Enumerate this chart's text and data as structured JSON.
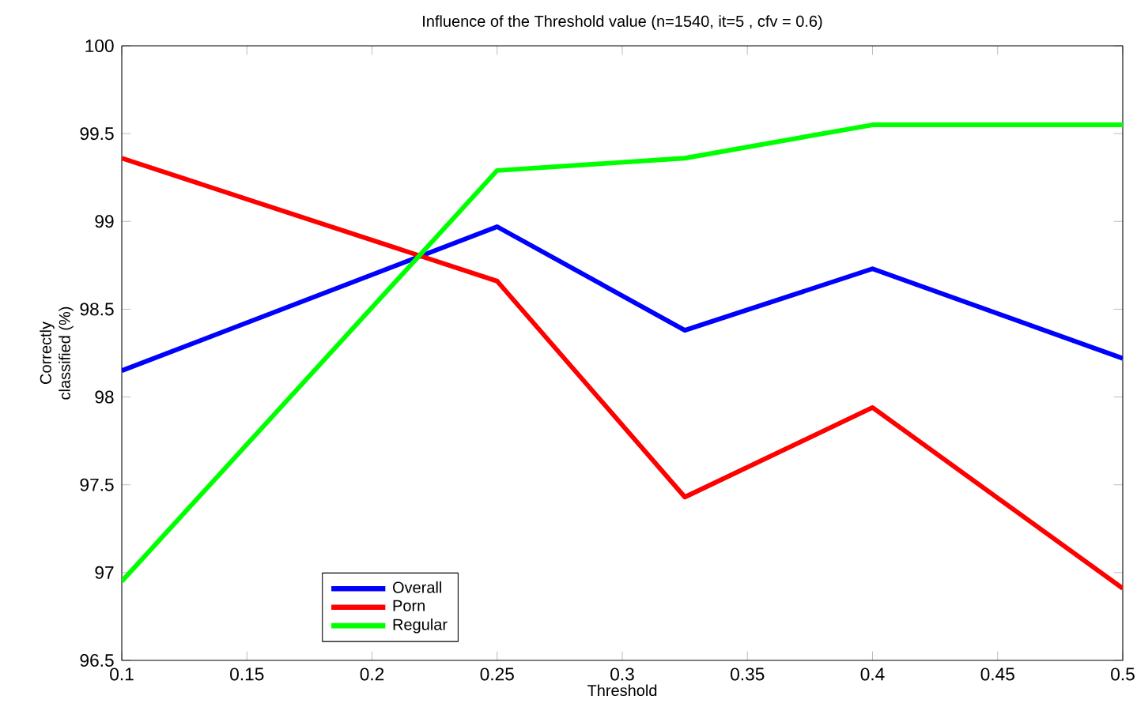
{
  "chart_data": {
    "type": "line",
    "title": "Influence of the Threshold value (n=1540, it=5 , cfv = 0.6)",
    "xlabel": "Threshold",
    "ylabel": "Correctly\nclassified (%)",
    "x": [
      0.1,
      0.25,
      0.325,
      0.4,
      0.5
    ],
    "series": [
      {
        "name": "Overall",
        "color": "#0000ff",
        "values": [
          98.15,
          98.97,
          98.38,
          98.73,
          98.22
        ]
      },
      {
        "name": "Porn",
        "color": "#ff0000",
        "values": [
          99.36,
          98.66,
          97.43,
          97.94,
          96.91
        ]
      },
      {
        "name": "Regular",
        "color": "#00ff00",
        "values": [
          96.95,
          99.29,
          99.36,
          99.55,
          99.55
        ]
      }
    ],
    "xlim": [
      0.1,
      0.5
    ],
    "ylim": [
      96.5,
      100
    ],
    "xticks": [
      0.1,
      0.15,
      0.2,
      0.25,
      0.3,
      0.35,
      0.4,
      0.45,
      0.5
    ],
    "yticks": [
      96.5,
      97,
      97.5,
      98,
      98.5,
      99,
      99.5,
      100
    ],
    "grid": false,
    "legend": "bottom left",
    "marker": "none",
    "line_style": "solid"
  }
}
